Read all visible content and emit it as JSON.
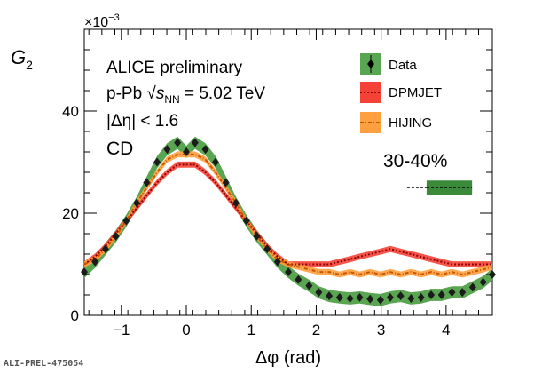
{
  "chart_data": {
    "type": "line",
    "xlabel": "Δφ (rad)",
    "ylabel": "G",
    "ylabel_sub": "2",
    "yscale_label": "×10",
    "yscale_exp": "−3",
    "xlim": [
      -1.571,
      4.712
    ],
    "ylim": [
      0,
      56
    ],
    "xticks": [
      -1,
      0,
      1,
      2,
      3,
      4
    ],
    "yticks": [
      0,
      20,
      40
    ],
    "annotations": {
      "line1": "ALICE preliminary",
      "line2_prefix": "p-Pb ",
      "line2_sqrt": "√",
      "line2_s": "s",
      "line2_sub": "NN",
      "line2_suffix": " = 5.02 TeV",
      "line3": "|Δη| < 1.6",
      "line4": "CD",
      "centrality": "30-40%"
    },
    "legend_position": "top-right",
    "reference_label": "ALI-PREL-475054",
    "series": [
      {
        "name": "Data",
        "color": "#2e7d32",
        "band_color": "#5aa552",
        "x": [
          -1.571,
          -1.405,
          -1.245,
          -1.085,
          -0.925,
          -0.765,
          -0.61,
          -0.45,
          -0.295,
          -0.135,
          0.0,
          0.135,
          0.295,
          0.45,
          0.61,
          0.765,
          0.925,
          1.085,
          1.245,
          1.405,
          1.571,
          1.725,
          1.89,
          2.04,
          2.2,
          2.36,
          2.52,
          2.67,
          2.83,
          2.99,
          3.14,
          3.3,
          3.46,
          3.615,
          3.77,
          3.93,
          4.09,
          4.25,
          4.41,
          4.57,
          4.712
        ],
        "y": [
          8.5,
          10.5,
          13,
          15.5,
          18.5,
          22,
          26,
          30,
          32.5,
          33.8,
          32,
          33.8,
          32.5,
          30,
          26,
          22,
          18.5,
          15.5,
          13,
          10.5,
          8.5,
          7,
          5.8,
          4.5,
          3.8,
          3.5,
          3.3,
          3.5,
          3.2,
          3,
          3.5,
          3.8,
          3.3,
          3.5,
          4,
          4,
          4.5,
          4.5,
          5.5,
          6.5,
          8
        ]
      },
      {
        "name": "DPMJET",
        "color": "#8b0000",
        "band_color": "#f44336",
        "x": [
          -1.571,
          -1.405,
          -1.245,
          -1.085,
          -0.925,
          -0.765,
          -0.61,
          -0.45,
          -0.295,
          -0.135,
          0.0,
          0.135,
          0.295,
          0.45,
          0.61,
          0.765,
          0.925,
          1.085,
          1.245,
          1.405,
          1.571,
          1.725,
          1.89,
          2.04,
          2.2,
          2.36,
          2.52,
          2.67,
          2.83,
          2.99,
          3.14,
          3.3,
          3.46,
          3.615,
          3.77,
          3.93,
          4.09,
          4.25,
          4.41,
          4.57,
          4.712
        ],
        "y": [
          10,
          11.5,
          13.5,
          16,
          18.5,
          21,
          23.5,
          26,
          28,
          29.5,
          29.5,
          29.5,
          28,
          26,
          23.5,
          21,
          18.5,
          16,
          13.5,
          11.5,
          10,
          10,
          10,
          10,
          10,
          10.5,
          11,
          11.5,
          12,
          12.5,
          13,
          12.5,
          12,
          11.5,
          11,
          10.5,
          10,
          10,
          10,
          10,
          10
        ]
      },
      {
        "name": "HIJING",
        "color": "#cc5500",
        "band_color": "#ffa040",
        "x": [
          -1.571,
          -1.405,
          -1.245,
          -1.085,
          -0.925,
          -0.765,
          -0.61,
          -0.45,
          -0.295,
          -0.135,
          0.0,
          0.135,
          0.295,
          0.45,
          0.61,
          0.765,
          0.925,
          1.085,
          1.245,
          1.405,
          1.571,
          1.725,
          1.89,
          2.04,
          2.2,
          2.36,
          2.52,
          2.67,
          2.83,
          2.99,
          3.14,
          3.3,
          3.46,
          3.615,
          3.77,
          3.93,
          4.09,
          4.25,
          4.41,
          4.57,
          4.712
        ],
        "y": [
          10,
          11,
          13,
          15.5,
          18.5,
          22,
          25,
          28,
          30.5,
          31.5,
          31.5,
          31.5,
          30.5,
          28,
          25,
          22,
          18.5,
          15.5,
          13,
          11,
          10,
          9.5,
          9,
          8.5,
          8.5,
          8,
          8.5,
          8,
          8.5,
          8,
          8.5,
          8,
          8.5,
          8,
          8.5,
          8,
          8.5,
          8,
          8.5,
          9,
          9.5
        ]
      }
    ],
    "data_baseline": {
      "y": 25,
      "x_start": 3.7,
      "x_end": 4.4
    }
  }
}
